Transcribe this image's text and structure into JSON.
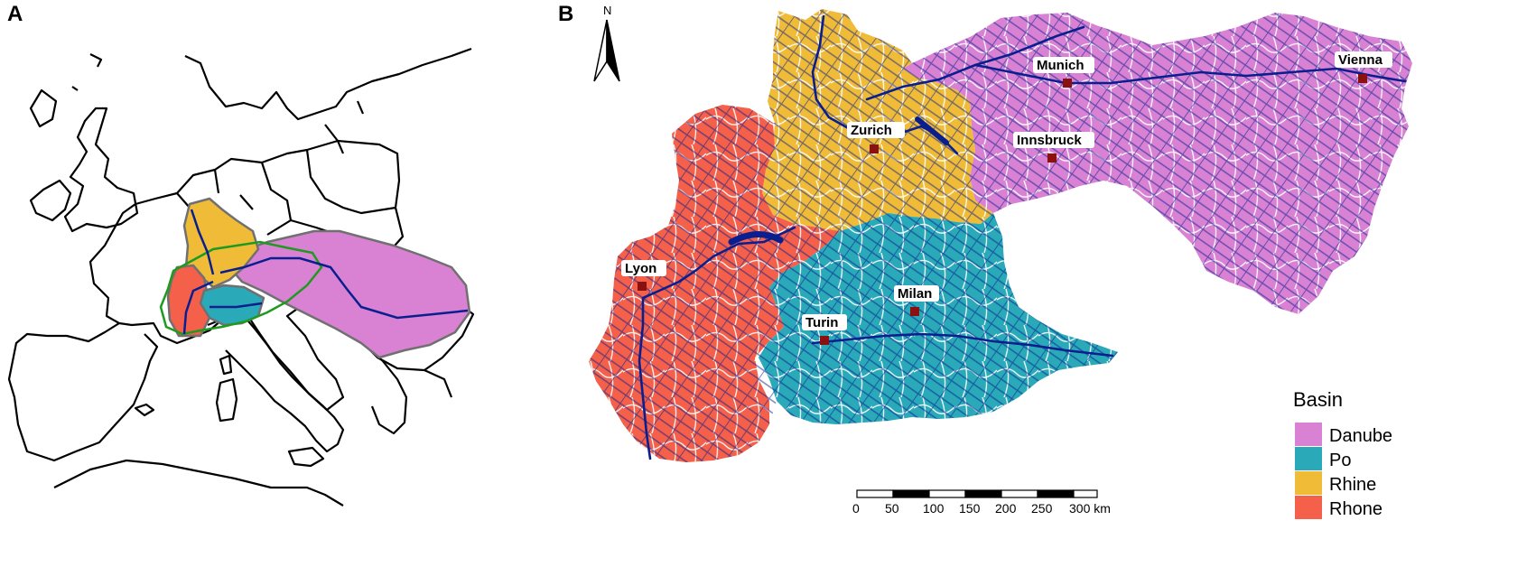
{
  "panels": {
    "a": {
      "label": "A"
    },
    "b": {
      "label": "B"
    }
  },
  "north_arrow": {
    "label": "N"
  },
  "cities": [
    {
      "name": "Munich"
    },
    {
      "name": "Vienna"
    },
    {
      "name": "Zurich"
    },
    {
      "name": "Innsbruck"
    },
    {
      "name": "Lyon"
    },
    {
      "name": "Milan"
    },
    {
      "name": "Turin"
    }
  ],
  "legend": {
    "title": "Basin",
    "items": [
      {
        "label": "Danube",
        "color": "#d982d4"
      },
      {
        "label": "Po",
        "color": "#2aa9b8"
      },
      {
        "label": "Rhine",
        "color": "#f0bc38"
      },
      {
        "label": "Rhone",
        "color": "#f4604a"
      }
    ]
  },
  "scale_bar": {
    "ticks": [
      "0",
      "50",
      "100",
      "150",
      "200",
      "250",
      "300 km"
    ]
  },
  "colors": {
    "river": "#0a1f8f",
    "city_marker": "#8b1010",
    "boundary_green": "#1e9a1e",
    "boundary_gray": "#707070"
  }
}
